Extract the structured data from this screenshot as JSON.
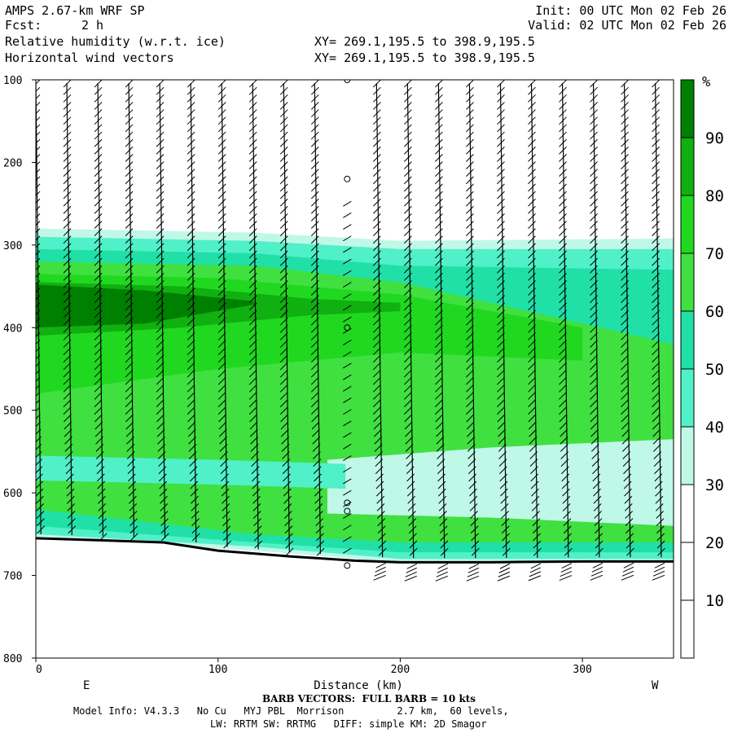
{
  "header": {
    "title_line": "AMPS 2.67-km WRF SP",
    "fcst_label": "Fcst:",
    "fcst_value": "2 h",
    "init": "Init: 00 UTC Mon 02 Feb 26",
    "valid": "Valid: 02 UTC Mon 02 Feb 26",
    "field1": "Relative humidity (w.r.t. ice)",
    "field2": "Horizontal wind vectors",
    "xy1": "XY= 269.1,195.5 to 398.9,195.5",
    "xy2": "XY= 269.1,195.5 to 398.9,195.5"
  },
  "footer": {
    "barb_note": "BARB VECTORS:  FULL BARB = 10 kts",
    "model_info": "Model Info: V4.3.3   No Cu   MYJ PBL  Morrison         2.7 km,  60 levels,",
    "physics": "LW: RRTM SW: RRTMG   DIFF: simple KM: 2D Smagor"
  },
  "colors": {
    "rh_10_20": "#ffffff",
    "rh_20_30": "#ffffff",
    "rh_30_40": "#c0f8e8",
    "rh_40_50": "#50f0c8",
    "rh_50_60": "#20e0a8",
    "rh_60_70": "#40e040",
    "rh_70_80": "#20d820",
    "rh_80_90": "#10b010",
    "rh_90_100": "#008000",
    "terrain_line": "#000000"
  },
  "chart_data": {
    "type": "heatmap",
    "title": "Relative humidity (w.r.t. ice)",
    "xlabel": "Distance (km)",
    "ylabel": "",
    "xlim": [
      0,
      350
    ],
    "ylim": [
      800,
      100
    ],
    "x_ticks": [
      0,
      100,
      200,
      300
    ],
    "y_ticks": [
      100,
      200,
      300,
      400,
      500,
      600,
      700,
      800
    ],
    "x_end_labels": {
      "left": "E",
      "right": "W"
    },
    "colorbar": {
      "unit": "%",
      "levels": [
        10,
        20,
        30,
        40,
        50,
        60,
        70,
        80,
        90
      ]
    },
    "terrain_surface_hpa": {
      "x": [
        0,
        30,
        70,
        100,
        140,
        175,
        200,
        250,
        300,
        350
      ],
      "p": [
        655,
        657,
        660,
        670,
        677,
        682,
        684,
        684,
        683,
        683
      ]
    },
    "rh_layers": [
      {
        "x": [
          0,
          120,
          200,
          350
        ],
        "top": [
          280,
          285,
          295,
          292
        ],
        "bottom": [
          655,
          670,
          684,
          683
        ],
        "rh_pct": 35
      },
      {
        "x": [
          0,
          120,
          200,
          350
        ],
        "top": [
          290,
          295,
          305,
          305
        ],
        "bottom": [
          650,
          665,
          680,
          680
        ],
        "rh_pct": 45
      },
      {
        "x": [
          0,
          120,
          200,
          350
        ],
        "top": [
          305,
          310,
          325,
          330
        ],
        "bottom": [
          640,
          660,
          672,
          672
        ],
        "rh_pct": 55
      },
      {
        "x": [
          0,
          120,
          200,
          350
        ],
        "top": [
          320,
          325,
          345,
          420
        ],
        "bottom": [
          620,
          650,
          660,
          660
        ],
        "rh_pct": 65
      },
      {
        "x": [
          0,
          100,
          200,
          300
        ],
        "top": [
          335,
          340,
          360,
          400
        ],
        "bottom": [
          480,
          450,
          430,
          440
        ],
        "rh_pct": 75
      },
      {
        "x": [
          0,
          80,
          150,
          200
        ],
        "top": [
          345,
          350,
          365,
          370
        ],
        "bottom": [
          410,
          400,
          385,
          380
        ],
        "rh_pct": 85
      },
      {
        "x": [
          0,
          60,
          120
        ],
        "top": [
          348,
          355,
          368
        ],
        "bottom": [
          400,
          395,
          372
        ],
        "rh_pct": 92
      }
    ],
    "dry_pockets": [
      {
        "x": [
          160,
          250,
          350
        ],
        "top": [
          560,
          545,
          535
        ],
        "bottom": [
          625,
          630,
          640
        ],
        "rh_pct": 35
      },
      {
        "x": [
          0,
          100,
          170
        ],
        "top": [
          555,
          560,
          565
        ],
        "bottom": [
          585,
          590,
          595
        ],
        "rh_pct": 45
      }
    ],
    "barb_columns_km": [
      0,
      17,
      34,
      51,
      68,
      85,
      102,
      119,
      136,
      153,
      170,
      187,
      204,
      221,
      238,
      255,
      272,
      289,
      306,
      323,
      340
    ],
    "calm_column_km": 170
  }
}
